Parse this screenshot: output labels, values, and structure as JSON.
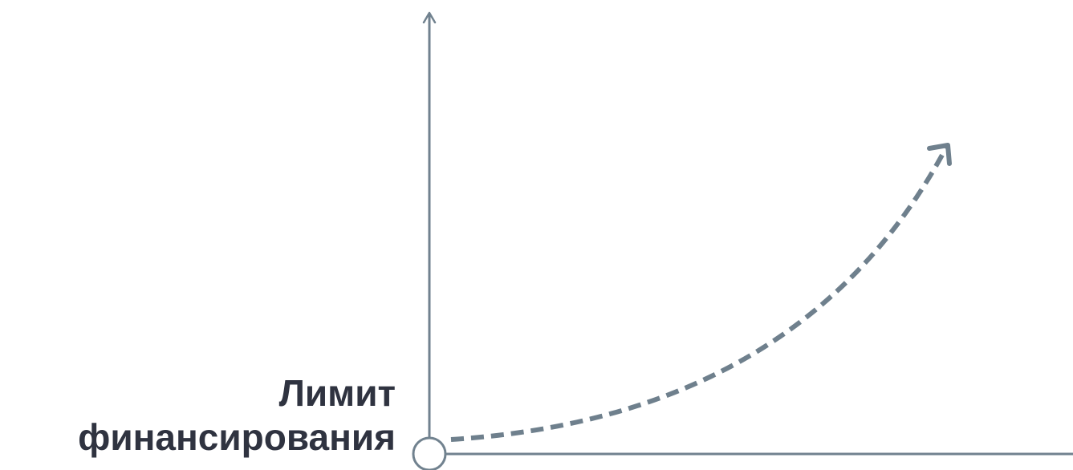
{
  "diagram": {
    "label_line1": "Лимит",
    "label_line2": "финансирования",
    "colors": {
      "axis": "#71828f",
      "curve": "#6f808d",
      "text": "#2f3340",
      "background": "#ffffff"
    },
    "icons": {
      "origin": "hollow-circle",
      "curve_end": "open-arrowhead"
    }
  }
}
